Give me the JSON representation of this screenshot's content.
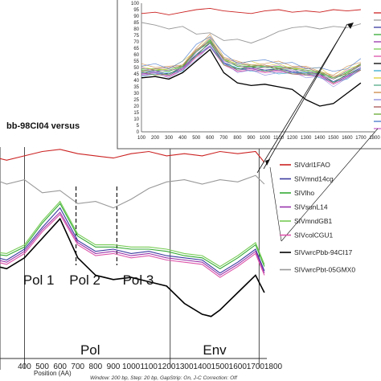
{
  "chart_data": [
    {
      "type": "line",
      "xlim": [
        0,
        1800
      ],
      "x_ticks": [
        "400",
        "500",
        "600",
        "700",
        "800",
        "900",
        "1000",
        "1100",
        "1200",
        "1300",
        "1400",
        "1500",
        "1600",
        "1700",
        "1800"
      ],
      "xlabel": "Position (AA)",
      "caption": "Window: 200 bp, Step: 20 bp, GapStrip: On, J-C Correction: Off",
      "title": "bb-98CI04 versus",
      "regions": [
        {
          "label": "Pol 1",
          "x": 480
        },
        {
          "label": "Pol 2",
          "x": 740
        },
        {
          "label": "Pol 3",
          "x": 1040
        },
        {
          "label": "Pol",
          "x": 770
        },
        {
          "label": "Env",
          "x": 1470
        }
      ],
      "vlines": [
        {
          "x": 400,
          "style": "solid"
        },
        {
          "x": 690,
          "style": "dashed"
        },
        {
          "x": 920,
          "style": "dashed"
        },
        {
          "x": 1220,
          "style": "solid"
        },
        {
          "x": 1720,
          "style": "solid"
        }
      ],
      "legend": [
        "SIVdrl1FAO",
        "SIVmnd14cg",
        "SIVlho",
        "SIVsunL14",
        "SIVmndGB1",
        "SIVcolCGU1",
        "SIVwrcPbb-94CI17",
        "SIVwrcPbt-05GMX0"
      ],
      "series": [
        {
          "name": "SIVdrl1FAO",
          "color": "#cc2222",
          "x": [
            0,
            100,
            200,
            300,
            400,
            500,
            600,
            700,
            800,
            900,
            1000,
            1100,
            1200,
            1300,
            1400,
            1500,
            1600,
            1700,
            1750
          ],
          "y": [
            94,
            92,
            93,
            91,
            93,
            95,
            96,
            94,
            93,
            92,
            94,
            95,
            93,
            94,
            93,
            95,
            94,
            95,
            90
          ]
        },
        {
          "name": "SIVwrcPbt-05GMX0",
          "color": "#999999",
          "x": [
            0,
            100,
            200,
            300,
            400,
            500,
            600,
            650,
            700,
            800,
            900,
            1000,
            1100,
            1200,
            1300,
            1400,
            1500,
            1600,
            1700,
            1750
          ],
          "y": [
            84,
            85,
            83,
            80,
            82,
            76,
            77,
            74,
            71,
            72,
            69,
            73,
            78,
            81,
            82,
            80,
            82,
            81,
            84,
            80
          ]
        },
        {
          "name": "SIVmnd14cg",
          "color": "#3a3aa0",
          "x": [
            0,
            100,
            200,
            300,
            400,
            500,
            600,
            700,
            800,
            900,
            1000,
            1100,
            1200,
            1300,
            1400,
            1500,
            1600,
            1700,
            1750
          ],
          "y": [
            48,
            46,
            47,
            45,
            50,
            60,
            69,
            54,
            49,
            50,
            48,
            49,
            47,
            46,
            45,
            39,
            44,
            50,
            40
          ]
        },
        {
          "name": "SIVlho",
          "color": "#33aa33",
          "x": [
            0,
            100,
            200,
            300,
            400,
            500,
            600,
            700,
            800,
            900,
            1000,
            1100,
            1200,
            1300,
            1400,
            1500,
            1600,
            1700,
            1750
          ],
          "y": [
            49,
            48,
            48,
            47,
            51,
            62,
            71,
            56,
            51,
            51,
            50,
            50,
            49,
            47,
            46,
            41,
            46,
            52,
            42
          ]
        },
        {
          "name": "SIVsunL14",
          "color": "#9933aa",
          "x": [
            0,
            100,
            200,
            300,
            400,
            500,
            600,
            700,
            800,
            900,
            1000,
            1100,
            1200,
            1300,
            1400,
            1500,
            1600,
            1700,
            1750
          ],
          "y": [
            47,
            45,
            46,
            44,
            49,
            59,
            67,
            53,
            48,
            49,
            47,
            48,
            46,
            45,
            44,
            38,
            43,
            49,
            39
          ]
        },
        {
          "name": "SIVmndGB1",
          "color": "#77cc55",
          "x": [
            0,
            100,
            200,
            300,
            400,
            500,
            600,
            700,
            800,
            900,
            1000,
            1100,
            1200,
            1300,
            1400,
            1500,
            1600,
            1700,
            1750
          ],
          "y": [
            50,
            49,
            49,
            48,
            52,
            63,
            72,
            57,
            52,
            52,
            51,
            51,
            50,
            48,
            47,
            42,
            47,
            53,
            43
          ]
        },
        {
          "name": "SIVcolCGU1",
          "color": "#dd55aa",
          "x": [
            0,
            100,
            200,
            300,
            400,
            500,
            600,
            700,
            800,
            900,
            1000,
            1100,
            1200,
            1300,
            1400,
            1500,
            1600,
            1700,
            1750
          ],
          "y": [
            46,
            44,
            45,
            43,
            48,
            58,
            66,
            52,
            47,
            48,
            46,
            47,
            45,
            44,
            43,
            37,
            42,
            48,
            38
          ]
        },
        {
          "name": "SIVwrcPbb-94CI17",
          "color": "#000000",
          "x": [
            0,
            100,
            200,
            300,
            400,
            500,
            600,
            700,
            800,
            900,
            1000,
            1100,
            1200,
            1300,
            1400,
            1450,
            1500,
            1600,
            1700,
            1750
          ],
          "y": [
            44,
            42,
            43,
            41,
            46,
            55,
            64,
            46,
            38,
            36,
            37,
            35,
            33,
            25,
            20,
            19,
            22,
            30,
            38,
            30
          ]
        }
      ]
    },
    {
      "type": "line",
      "xlim": [
        100,
        1800
      ],
      "ylim": [
        0,
        100
      ],
      "x_ticks": [
        "100",
        "200",
        "300",
        "400",
        "500",
        "600",
        "700",
        "800",
        "900",
        "1000",
        "1100",
        "1200",
        "1300",
        "1400",
        "1500",
        "1600",
        "1700",
        "1800"
      ],
      "y_ticks": [
        "0",
        "5",
        "10",
        "15",
        "20",
        "25",
        "30",
        "35",
        "40",
        "45",
        "50",
        "55",
        "60",
        "65",
        "70",
        "75",
        "80",
        "85",
        "90",
        "95",
        "100"
      ],
      "extra_series_colors": [
        "#33aacc",
        "#ddcc33",
        "#55aa88",
        "#cc8844",
        "#8888dd",
        "#aa5555",
        "#66aa33",
        "#4477cc",
        "#cc66cc"
      ]
    }
  ]
}
